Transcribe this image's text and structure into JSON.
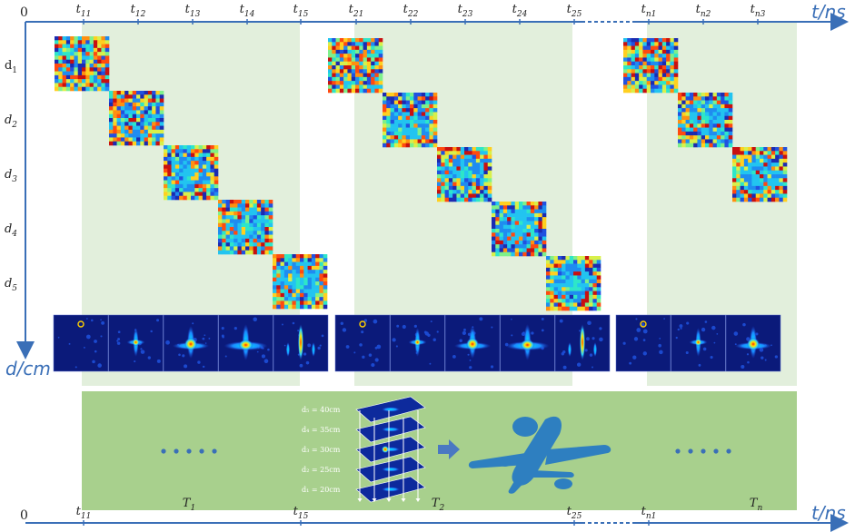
{
  "origin_label": "0",
  "time_axis_label": "t/ns",
  "depth_axis_label": "d/cm",
  "top_ticks": [
    {
      "base": "t",
      "sub": "11"
    },
    {
      "base": "t",
      "sub": "12"
    },
    {
      "base": "t",
      "sub": "13"
    },
    {
      "base": "t",
      "sub": "14"
    },
    {
      "base": "t",
      "sub": "15"
    },
    {
      "base": "t",
      "sub": "21"
    },
    {
      "base": "t",
      "sub": "22"
    },
    {
      "base": "t",
      "sub": "23"
    },
    {
      "base": "t",
      "sub": "24"
    },
    {
      "base": "t",
      "sub": "25"
    },
    {
      "base": "t",
      "sub": "n1"
    },
    {
      "base": "t",
      "sub": "n2"
    },
    {
      "base": "t",
      "sub": "n3"
    }
  ],
  "depth_ticks": [
    {
      "base": "d",
      "sub": "1"
    },
    {
      "base": "d",
      "sub": "2"
    },
    {
      "base": "d",
      "sub": "3"
    },
    {
      "base": "d",
      "sub": "4"
    },
    {
      "base": "d",
      "sub": "5"
    }
  ],
  "bottom_ticks": [
    {
      "base": "t",
      "sub": "11"
    },
    {
      "base": "t",
      "sub": "15"
    },
    {
      "base": "t",
      "sub": "25"
    },
    {
      "base": "t",
      "sub": "n1"
    }
  ],
  "period_labels": [
    {
      "base": "T",
      "sub": "1"
    },
    {
      "base": "T",
      "sub": "2"
    },
    {
      "base": "T",
      "sub": "n"
    }
  ],
  "stack_labels": [
    "d₅ = 40cm",
    "d₄ = 35cm",
    "d₃ = 30cm",
    "d₂ = 25cm",
    "d₁ = 20cm"
  ],
  "colors": {
    "axis": "#3a6fb7",
    "band": "#e2efdc",
    "bottom_panel": "#a8d08d",
    "jet_dark": "#0b1a7a",
    "airplane": "#2e7fc0"
  },
  "icons": {
    "arrow": "right-arrow-icon",
    "airplane": "airplane-silhouette-icon"
  }
}
